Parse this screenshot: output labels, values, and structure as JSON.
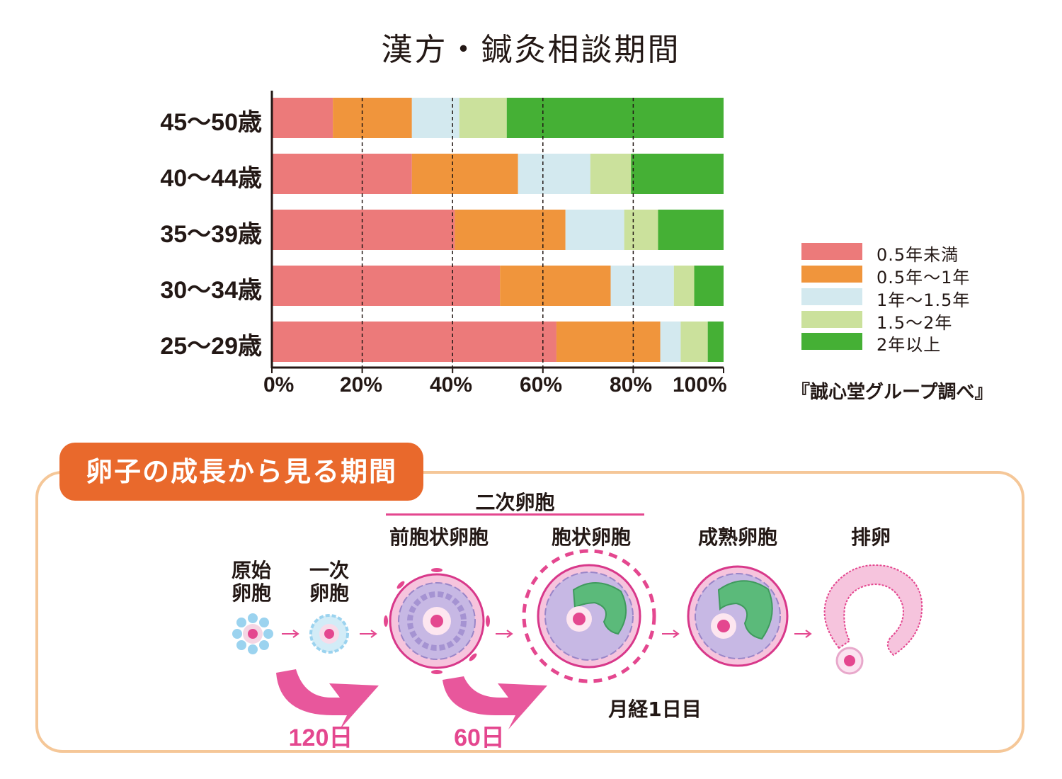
{
  "chart_data": {
    "type": "bar",
    "orientation": "horizontal",
    "stacked": true,
    "title": "漢方・鍼灸相談期間",
    "categories": [
      "45〜50歳",
      "40〜44歳",
      "35〜39歳",
      "30〜34歳",
      "25〜29歳"
    ],
    "series": [
      {
        "name": "0.5年未満",
        "color": "#ec7a7a",
        "values": [
          13.5,
          31,
          40.5,
          50.5,
          63
        ]
      },
      {
        "name": "0.5年〜1年",
        "color": "#f0953c",
        "values": [
          17.5,
          23.5,
          24.5,
          24.5,
          23
        ]
      },
      {
        "name": "1年〜1.5年",
        "color": "#d3e9ef",
        "values": [
          10.5,
          16,
          13,
          14,
          4.5
        ]
      },
      {
        "name": "1.5〜2年",
        "color": "#cbe19c",
        "values": [
          10.5,
          9,
          7.5,
          4.5,
          6
        ]
      },
      {
        "name": "2年以上",
        "color": "#45b035",
        "values": [
          48,
          20.5,
          14.5,
          6.5,
          3.5
        ]
      }
    ],
    "xticks": [
      "0%",
      "20%",
      "40%",
      "60%",
      "80%",
      "100%"
    ],
    "xlim": [
      0,
      100
    ],
    "grid": "dashed vertical at 20% intervals",
    "legend": "right",
    "source": "『誠心堂グループ調べ』"
  },
  "section": {
    "title": "卵子の成長から見る期間",
    "group_label": "二次卵胞",
    "stages": [
      {
        "label_line1": "原始",
        "label_line2": "卵胞"
      },
      {
        "label_line1": "一次",
        "label_line2": "卵胞"
      },
      {
        "label": "前胞状卵胞"
      },
      {
        "label": "胞状卵胞"
      },
      {
        "label": "成熟卵胞"
      },
      {
        "label": "排卵"
      }
    ],
    "duration_1": "120日",
    "duration_2": "60日",
    "menstrual_note": "月経1日目"
  },
  "colors": {
    "accent_orange": "#e9692c",
    "frame": "#f5c798",
    "pink": "#e4478f"
  }
}
